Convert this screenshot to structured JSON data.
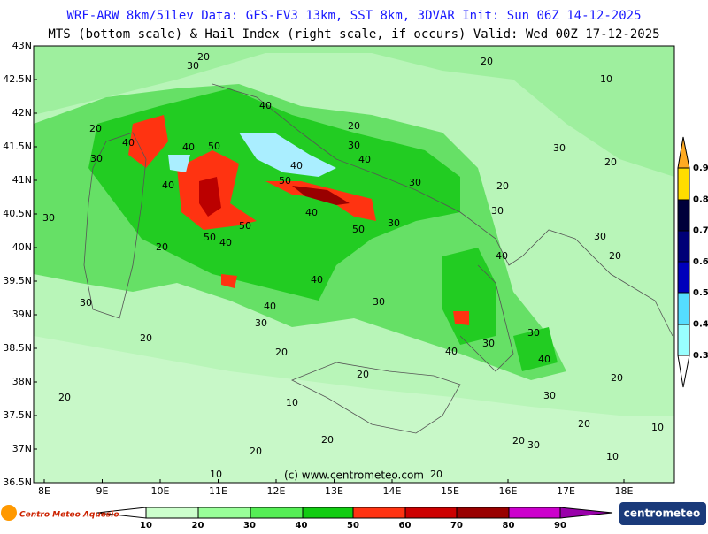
{
  "header": {
    "line1": "WRF-ARW 8km/51lev  Data: GFS-FV3 13km, SST 8km, 3DVAR   Init: Sun 06Z 14-12-2025",
    "line2": "MTS (bottom scale) & Hail Index (right scale, if occurs) Valid: Wed 00Z 17-12-2025"
  },
  "axes": {
    "lat_labels": [
      "43N",
      "42.5N",
      "42N",
      "41.5N",
      "41N",
      "40.5N",
      "40N",
      "39.5N",
      "39N",
      "38.5N",
      "38N",
      "37.5N",
      "37N",
      "36.5N"
    ],
    "lon_labels": [
      "8E",
      "9E",
      "10E",
      "11E",
      "12E",
      "13E",
      "14E",
      "15E",
      "16E",
      "17E",
      "18E"
    ]
  },
  "colorbar": {
    "labels": [
      "10",
      "20",
      "30",
      "40",
      "50",
      "60",
      "70",
      "80",
      "90"
    ]
  },
  "hail_scale": {
    "labels": [
      "0.9",
      "0.8",
      "0.7",
      "0.6",
      "0.5",
      "0.4",
      "0.3"
    ]
  },
  "contour_labels": [
    "20",
    "30",
    "20",
    "10",
    "40",
    "20",
    "40",
    "40",
    "50",
    "20",
    "30",
    "40",
    "30",
    "40",
    "50",
    "40",
    "30",
    "20",
    "20",
    "30",
    "30",
    "50",
    "40",
    "50",
    "40",
    "50",
    "30",
    "30",
    "20",
    "40",
    "20",
    "30",
    "40",
    "40",
    "30",
    "30",
    "30",
    "20",
    "20",
    "30",
    "30",
    "40",
    "40",
    "20",
    "20",
    "20",
    "10",
    "30",
    "20",
    "10",
    "20",
    "20",
    "20",
    "30",
    "10",
    "20",
    "10"
  ],
  "copyright": "(c) www.centrometeo.com",
  "logo_left": "Centro Meteo Aquesio",
  "logo_right": "centrometeo"
}
